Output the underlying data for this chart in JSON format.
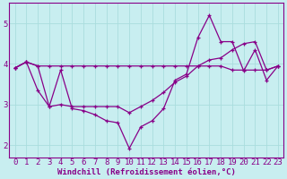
{
  "xlabel": "Windchill (Refroidissement éolien,°C)",
  "background_color": "#c8eef0",
  "grid_color": "#aadddd",
  "line_color": "#880088",
  "xlim": [
    -0.5,
    23.5
  ],
  "ylim": [
    1.7,
    5.5
  ],
  "yticks": [
    2,
    3,
    4,
    5
  ],
  "xticks": [
    0,
    1,
    2,
    3,
    4,
    5,
    6,
    7,
    8,
    9,
    10,
    11,
    12,
    13,
    14,
    15,
    16,
    17,
    18,
    19,
    20,
    21,
    22,
    23
  ],
  "line1_x": [
    0,
    1,
    2,
    3,
    4,
    5,
    6,
    7,
    8,
    9,
    10,
    11,
    12,
    13,
    14,
    15,
    16,
    17,
    18,
    19,
    20,
    21,
    22,
    23
  ],
  "line1_y": [
    3.9,
    4.05,
    3.35,
    2.95,
    3.85,
    2.9,
    2.85,
    2.75,
    2.6,
    2.55,
    1.92,
    2.45,
    2.6,
    2.9,
    3.6,
    3.75,
    4.65,
    5.2,
    4.55,
    4.55,
    3.83,
    4.35,
    3.6,
    3.95
  ],
  "line2_x": [
    0,
    1,
    2,
    3,
    4,
    5,
    6,
    7,
    8,
    9,
    10,
    11,
    12,
    13,
    14,
    15,
    16,
    17,
    18,
    19,
    20,
    21,
    22,
    23
  ],
  "line2_y": [
    3.9,
    4.05,
    3.95,
    3.95,
    3.95,
    3.95,
    3.95,
    3.95,
    3.95,
    3.95,
    3.95,
    3.95,
    3.95,
    3.95,
    3.95,
    3.95,
    3.95,
    3.95,
    3.95,
    3.85,
    3.85,
    3.85,
    3.85,
    3.95
  ],
  "line3_x": [
    0,
    1,
    2,
    3,
    4,
    5,
    6,
    7,
    8,
    9,
    10,
    11,
    12,
    13,
    14,
    15,
    16,
    17,
    18,
    19,
    20,
    21,
    22,
    23
  ],
  "line3_y": [
    3.9,
    4.05,
    3.95,
    2.95,
    3.0,
    2.95,
    2.95,
    2.95,
    2.95,
    2.95,
    2.8,
    2.95,
    3.1,
    3.3,
    3.55,
    3.7,
    3.95,
    4.1,
    4.15,
    4.35,
    4.5,
    4.55,
    3.85,
    3.95
  ],
  "xlabel_fontsize": 6.5,
  "tick_fontsize": 6.5
}
